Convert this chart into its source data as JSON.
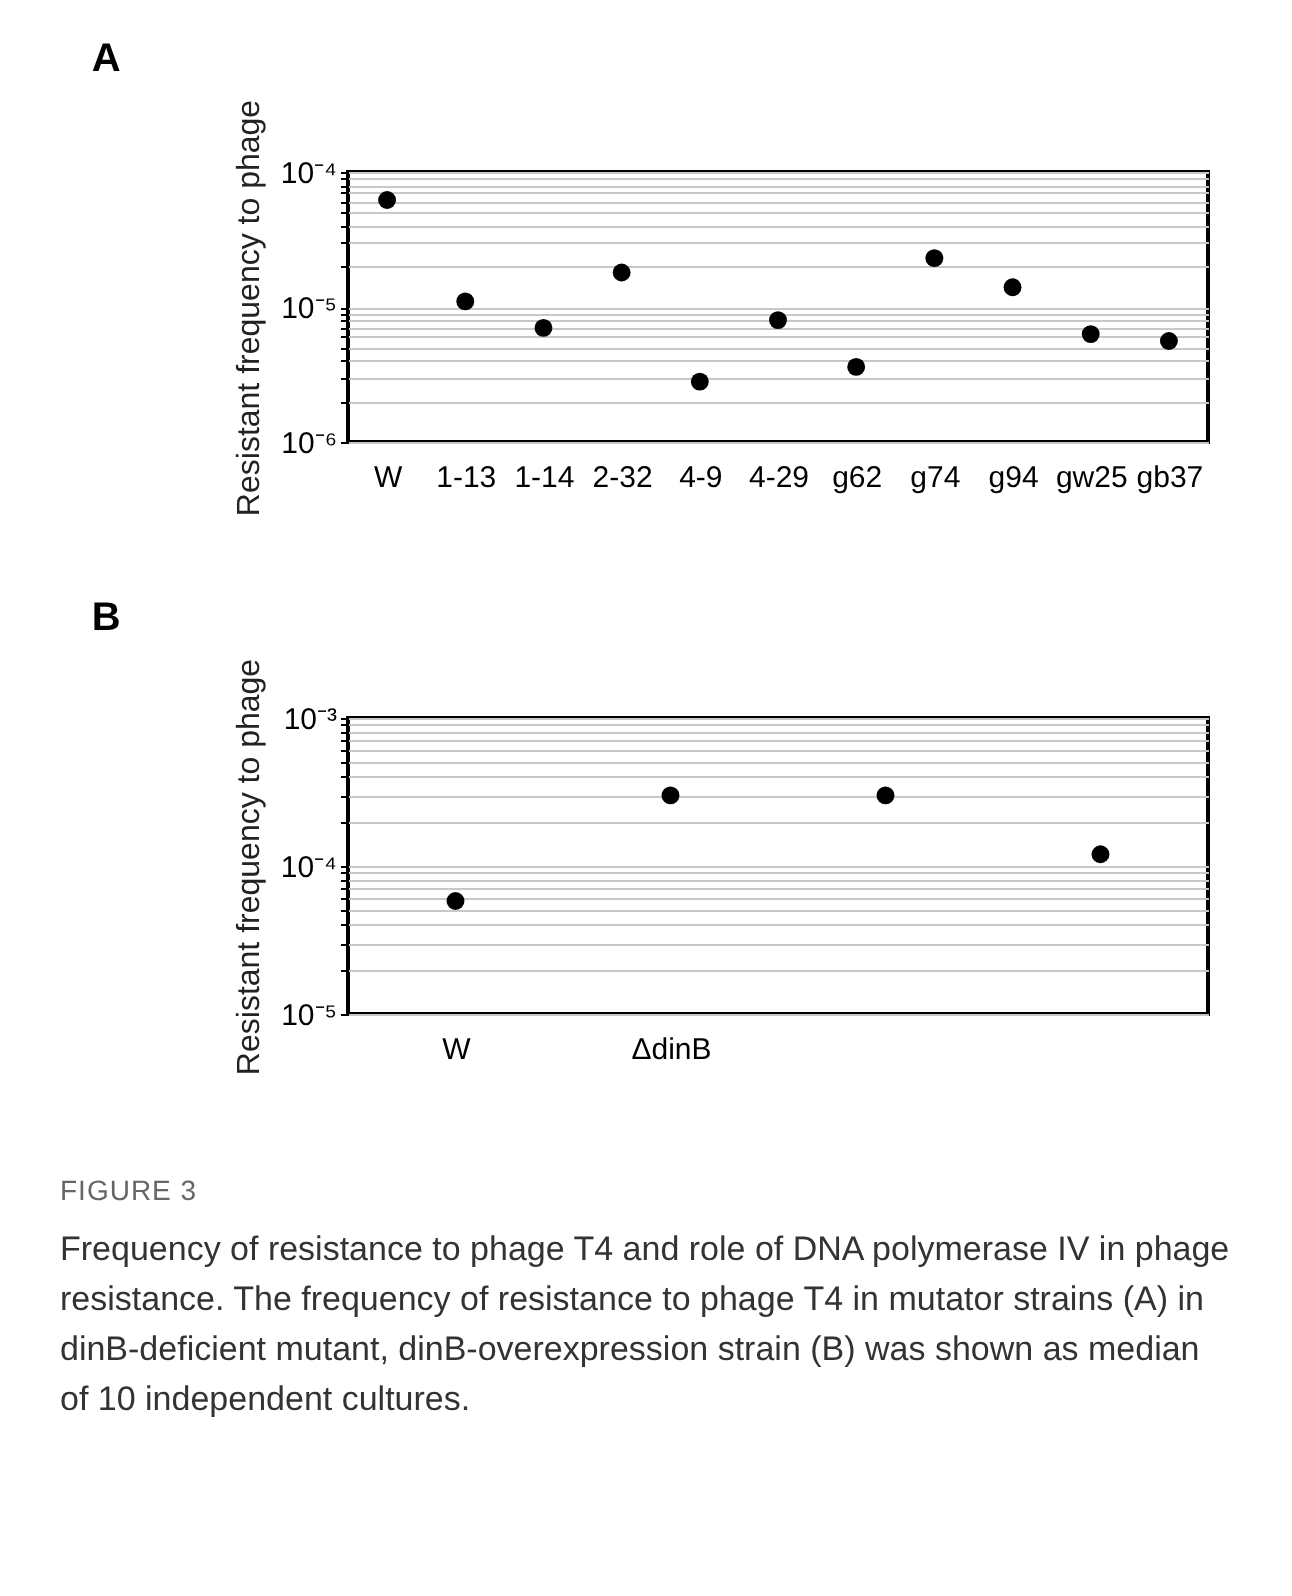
{
  "chart_data": [
    {
      "type": "scatter",
      "title": "A",
      "ylabel": "Resistant frequency to phage",
      "categories": [
        "W",
        "1-13",
        "1-14",
        "2-32",
        "4-9",
        "4-29",
        "g62",
        "g74",
        "g94",
        "gw25",
        "gb37"
      ],
      "values": [
        6.2e-05,
        1.1e-05,
        7e-06,
        1.8e-05,
        2.8e-06,
        8e-06,
        3.6e-06,
        2.3e-05,
        1.4e-05,
        6.3e-06,
        5.6e-06
      ],
      "color": "#000000",
      "marker": "circle",
      "log": true,
      "grid": "y",
      "ylim": [
        1e-06,
        0.0001
      ],
      "yticks": [
        {
          "value": 1e-06,
          "label": "10⁻⁶"
        },
        {
          "value": 2e-06,
          "label": null
        },
        {
          "value": 3e-06,
          "label": null
        },
        {
          "value": 4e-06,
          "label": null
        },
        {
          "value": 5e-06,
          "label": null
        },
        {
          "value": 6e-06,
          "label": null
        },
        {
          "value": 7e-06,
          "label": null
        },
        {
          "value": 8e-06,
          "label": null
        },
        {
          "value": 9e-06,
          "label": null
        },
        {
          "value": 1e-05,
          "label": "10⁻⁵"
        },
        {
          "value": 2e-05,
          "label": null
        },
        {
          "value": 3e-05,
          "label": null
        },
        {
          "value": 4e-05,
          "label": null
        },
        {
          "value": 5e-05,
          "label": null
        },
        {
          "value": 6e-05,
          "label": null
        },
        {
          "value": 7e-05,
          "label": null
        },
        {
          "value": 8e-05,
          "label": null
        },
        {
          "value": 9e-05,
          "label": null
        },
        {
          "value": 0.0001,
          "label": "10⁻⁴"
        }
      ]
    },
    {
      "type": "scatter",
      "title": "B",
      "ylabel": "Resistant frequency to phage",
      "categories": [
        "W",
        "ΔdinB",
        null,
        null
      ],
      "values": [
        5.8e-05,
        0.0003,
        0.0003,
        0.00012
      ],
      "color": "#000000",
      "marker": "circle",
      "log": true,
      "grid": "y",
      "ylim": [
        1e-05,
        0.001
      ],
      "yticks": [
        {
          "value": 1e-05,
          "label": "10⁻⁵"
        },
        {
          "value": 2e-05,
          "label": null
        },
        {
          "value": 3e-05,
          "label": null
        },
        {
          "value": 4e-05,
          "label": null
        },
        {
          "value": 5e-05,
          "label": null
        },
        {
          "value": 6e-05,
          "label": null
        },
        {
          "value": 7e-05,
          "label": null
        },
        {
          "value": 8e-05,
          "label": null
        },
        {
          "value": 9e-05,
          "label": null
        },
        {
          "value": 0.0001,
          "label": "10⁻⁴"
        },
        {
          "value": 0.0002,
          "label": null
        },
        {
          "value": 0.0003,
          "label": null
        },
        {
          "value": 0.0004,
          "label": null
        },
        {
          "value": 0.0005,
          "label": null
        },
        {
          "value": 0.0006,
          "label": null
        },
        {
          "value": 0.0007,
          "label": null
        },
        {
          "value": 0.0008,
          "label": null
        },
        {
          "value": 0.0009,
          "label": null
        },
        {
          "value": 0.001,
          "label": "10⁻³"
        }
      ],
      "annotations": [
        "FIGURE 3",
        "Frequency of resistance to phage T4 and role of DNA polymerase IV in phage resistance. The frequency of resistance to phage T4 in mutator strains (A) in dinB-deficient mutant, dinB-overexpression strain (B) was shown as median of 10 independent cultures."
      ]
    }
  ]
}
